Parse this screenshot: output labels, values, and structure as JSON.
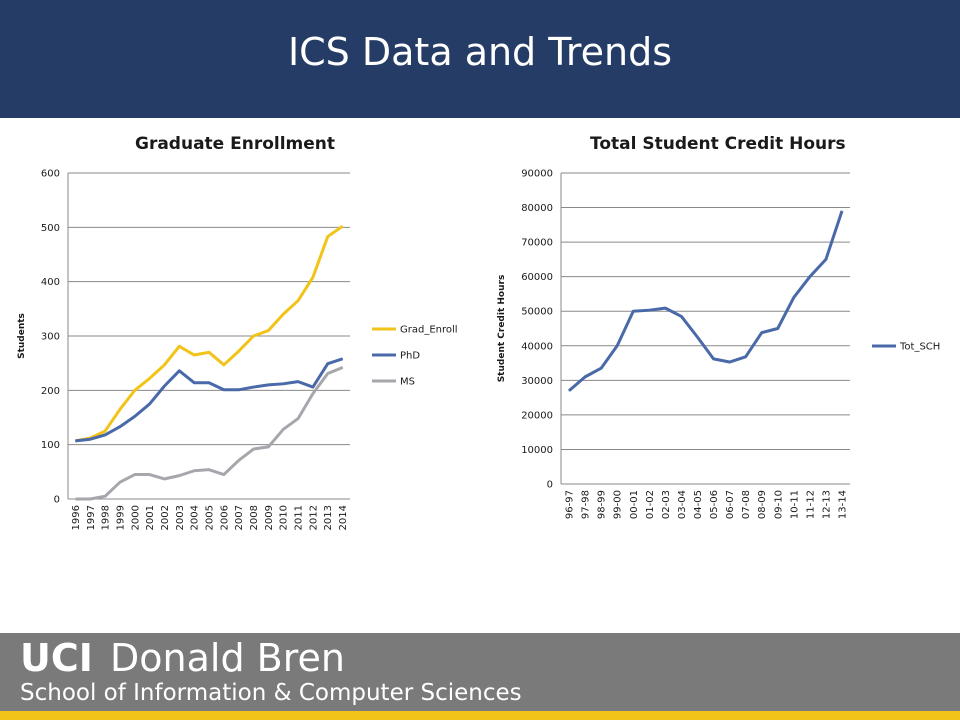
{
  "title": "ICS Data and Trends",
  "footer": {
    "uci": "UCI",
    "name": "Donald Bren",
    "school": "School of Information & Computer Sciences"
  },
  "colors": {
    "header": "#253d66",
    "footer": "#7a7a7a",
    "footer_bar": "#f2c318",
    "grad_enroll": "#f2c318",
    "phd": "#4a69a8",
    "ms": "#a6a6ad",
    "tot_sch": "#4a69a8"
  },
  "chart_data": [
    {
      "type": "line",
      "title": "Graduate Enrollment",
      "xlabel": "",
      "ylabel": "Students",
      "ylim": [
        0,
        600
      ],
      "yticks": [
        0,
        100,
        200,
        300,
        400,
        500,
        600
      ],
      "grid": true,
      "legend_position": "right",
      "categories": [
        "1996",
        "1997",
        "1998",
        "1999",
        "2000",
        "2001",
        "2002",
        "2003",
        "2004",
        "2005",
        "2006",
        "2007",
        "2008",
        "2009",
        "2010",
        "2011",
        "2012",
        "2013",
        "2014"
      ],
      "series": [
        {
          "name": "Grad_Enroll",
          "color": "#f2c318",
          "values": [
            107,
            112,
            125,
            165,
            200,
            222,
            247,
            281,
            265,
            270,
            247,
            272,
            300,
            310,
            340,
            365,
            408,
            483,
            502
          ]
        },
        {
          "name": "PhD",
          "color": "#4a69a8",
          "values": [
            107,
            110,
            118,
            133,
            152,
            175,
            208,
            236,
            214,
            214,
            201,
            201,
            206,
            210,
            212,
            216,
            206,
            249,
            258
          ]
        },
        {
          "name": "MS",
          "color": "#a6a6ad",
          "values": [
            0,
            0,
            5,
            31,
            45,
            45,
            37,
            43,
            52,
            54,
            45,
            71,
            92,
            96,
            128,
            148,
            194,
            231,
            242
          ]
        }
      ]
    },
    {
      "type": "line",
      "title": "Total Student Credit Hours",
      "xlabel": "",
      "ylabel": "Student Credit Hours",
      "ylim": [
        0,
        90000
      ],
      "yticks": [
        0,
        10000,
        20000,
        30000,
        40000,
        50000,
        60000,
        70000,
        80000,
        90000
      ],
      "grid": true,
      "legend_position": "right",
      "categories": [
        "96-97",
        "97-98",
        "98-99",
        "99-00",
        "00-01",
        "01-02",
        "02-03",
        "03-04",
        "04-05",
        "05-06",
        "06-07",
        "07-08",
        "08-09",
        "09-10",
        "10-11",
        "11-12",
        "12-13",
        "13-14"
      ],
      "series": [
        {
          "name": "Tot_SCH",
          "color": "#4a69a8",
          "values": [
            27000,
            31000,
            33500,
            40000,
            50000,
            50300,
            50900,
            48500,
            42500,
            36200,
            35300,
            36800,
            43800,
            45000,
            54000,
            60000,
            65000,
            79000
          ]
        }
      ]
    }
  ]
}
